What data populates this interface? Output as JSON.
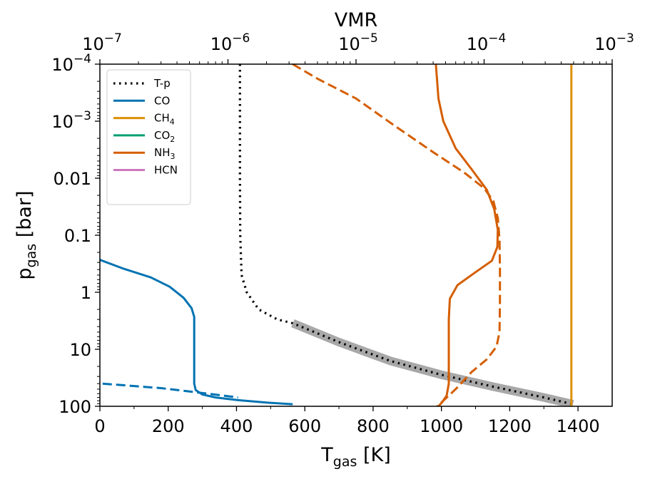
{
  "chart_data": {
    "type": "line",
    "title": "",
    "top_axis": {
      "label": "VMR",
      "scale": "log",
      "range": [
        1e-07,
        0.001
      ],
      "ticks": [
        {
          "base": "10",
          "exp": "−7",
          "value": 1e-07
        },
        {
          "base": "10",
          "exp": "−6",
          "value": 1e-06
        },
        {
          "base": "10",
          "exp": "−5",
          "value": 1e-05
        },
        {
          "base": "10",
          "exp": "−4",
          "value": 0.0001
        },
        {
          "base": "10",
          "exp": "−3",
          "value": 0.001
        }
      ]
    },
    "x_axis": {
      "label_main": "T",
      "label_sub": "gas",
      "label_unit": " [K]",
      "range": [
        0,
        1500
      ],
      "ticks": [
        {
          "label": "0",
          "value": 0
        },
        {
          "label": "200",
          "value": 200
        },
        {
          "label": "400",
          "value": 400
        },
        {
          "label": "600",
          "value": 600
        },
        {
          "label": "800",
          "value": 800
        },
        {
          "label": "1000",
          "value": 1000
        },
        {
          "label": "1200",
          "value": 1200
        },
        {
          "label": "1400",
          "value": 1400
        }
      ]
    },
    "y_axis": {
      "label_main": "p",
      "label_sub": "gas",
      "label_unit": " [bar]",
      "scale": "log",
      "inverted": true,
      "range": [
        100,
        0.0001
      ],
      "ticks": [
        {
          "type": "pow",
          "base": "10",
          "exp": "−4",
          "value": 0.0001
        },
        {
          "type": "pow",
          "base": "10",
          "exp": "−3",
          "value": 0.001
        },
        {
          "type": "plain",
          "label": "0.01",
          "value": 0.01
        },
        {
          "type": "plain",
          "label": "0.1",
          "value": 0.1
        },
        {
          "type": "plain",
          "label": "1",
          "value": 1
        },
        {
          "type": "plain",
          "label": "10",
          "value": 10
        },
        {
          "type": "plain",
          "label": "100",
          "value": 100
        }
      ]
    },
    "legend": {
      "position": "top-left",
      "entries": [
        {
          "label": "T-p",
          "sub": "",
          "color": "#000000",
          "style": "dotted"
        },
        {
          "label": "CO",
          "sub": "",
          "color": "#0173b2",
          "style": "solid"
        },
        {
          "label": "CH",
          "sub": "4",
          "color": "#de8f05",
          "style": "solid"
        },
        {
          "label": "CO",
          "sub": "2",
          "color": "#029e73",
          "style": "solid"
        },
        {
          "label": "NH",
          "sub": "3",
          "color": "#d55e00",
          "style": "solid"
        },
        {
          "label": "HCN",
          "sub": "",
          "color": "#cc78bc",
          "style": "solid"
        }
      ]
    },
    "series": [
      {
        "name": "T-p band",
        "axis": "temperature",
        "color": "#999999",
        "style": "band",
        "points": [
          [
            565,
            3.5
          ],
          [
            700,
            7.5
          ],
          [
            850,
            16
          ],
          [
            1000,
            28
          ],
          [
            1150,
            45
          ],
          [
            1300,
            70
          ],
          [
            1385,
            92
          ]
        ]
      },
      {
        "name": "T-p",
        "axis": "temperature",
        "color": "#000000",
        "style": "dotted",
        "points": [
          [
            410,
            0.0001
          ],
          [
            410,
            0.001
          ],
          [
            410,
            0.01
          ],
          [
            411,
            0.1
          ],
          [
            415,
            0.5
          ],
          [
            430,
            1.0
          ],
          [
            465,
            2.0
          ],
          [
            520,
            3.0
          ],
          [
            565,
            3.5
          ],
          [
            700,
            7.5
          ],
          [
            850,
            16
          ],
          [
            1000,
            28
          ],
          [
            1150,
            45
          ],
          [
            1300,
            70
          ],
          [
            1385,
            92
          ]
        ]
      },
      {
        "name": "CO",
        "axis": "vmr",
        "color": "#0173b2",
        "style": "solid",
        "points": [
          [
            1e-07,
            0.27
          ],
          [
            1.5e-07,
            0.38
          ],
          [
            2.5e-07,
            0.55
          ],
          [
            3.5e-07,
            0.8
          ],
          [
            4.5e-07,
            1.25
          ],
          [
            5.2e-07,
            1.9
          ],
          [
            5.45e-07,
            2.7
          ],
          [
            5.45e-07,
            10
          ],
          [
            5.45e-07,
            40
          ],
          [
            5.6e-07,
            52
          ],
          [
            6.3e-07,
            62
          ],
          [
            8e-07,
            70
          ],
          [
            1.2e-06,
            78
          ],
          [
            2e-06,
            86
          ],
          [
            3.2e-06,
            92
          ]
        ]
      },
      {
        "name": "CO (dashed)",
        "axis": "vmr",
        "color": "#0173b2",
        "style": "dashed",
        "points": [
          [
            1.05e-07,
            40
          ],
          [
            3e-07,
            48
          ],
          [
            7e-07,
            60
          ],
          [
            1.2e-06,
            70
          ]
        ]
      },
      {
        "name": "NH3",
        "axis": "vmr",
        "color": "#d55e00",
        "style": "solid",
        "points": [
          [
            4.2e-05,
            0.0001
          ],
          [
            4.4e-05,
            0.0004
          ],
          [
            4.8e-05,
            0.001
          ],
          [
            6e-05,
            0.003
          ],
          [
            8e-05,
            0.007
          ],
          [
            0.000105,
            0.016
          ],
          [
            0.00012,
            0.035
          ],
          [
            0.000128,
            0.08
          ],
          [
            0.000127,
            0.16
          ],
          [
            0.000115,
            0.28
          ],
          [
            8.5e-05,
            0.45
          ],
          [
            6.2e-05,
            0.75
          ],
          [
            5.4e-05,
            1.3
          ],
          [
            5.3e-05,
            3
          ],
          [
            5.3e-05,
            10
          ],
          [
            5.3e-05,
            40
          ],
          [
            5.1e-05,
            65
          ],
          [
            4.7e-05,
            85
          ],
          [
            4.4e-05,
            100
          ]
        ]
      },
      {
        "name": "NH3 (dashed)",
        "axis": "vmr",
        "color": "#d55e00",
        "style": "dashed",
        "points": [
          [
            3.2e-06,
            0.0001
          ],
          [
            5e-06,
            0.00018
          ],
          [
            1e-05,
            0.0004
          ],
          [
            2e-05,
            0.0012
          ],
          [
            4e-05,
            0.0035
          ],
          [
            7e-05,
            0.008
          ],
          [
            0.0001,
            0.015
          ],
          [
            0.000118,
            0.025
          ],
          [
            0.000128,
            0.05
          ],
          [
            0.000132,
            0.12
          ],
          [
            0.000133,
            0.4
          ],
          [
            0.000133,
            1.5
          ],
          [
            0.000132,
            5
          ],
          [
            0.000125,
            9
          ],
          [
            0.000105,
            15
          ],
          [
            8e-05,
            25
          ],
          [
            6e-05,
            50
          ],
          [
            4.8e-05,
            80
          ],
          [
            4.3e-05,
            100
          ]
        ]
      },
      {
        "name": "CH4",
        "axis": "vmr",
        "color": "#de8f05",
        "style": "solid",
        "points": [
          [
            0.00048,
            0.0001
          ],
          [
            0.00048,
            100
          ]
        ]
      }
    ]
  }
}
